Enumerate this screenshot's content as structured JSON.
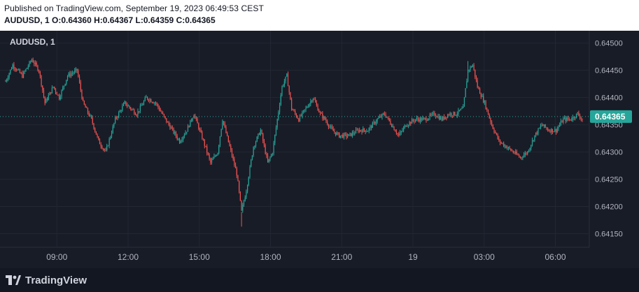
{
  "header": {
    "published": "Published on TradingView.com, September 19, 2023 06:49:53 CEST",
    "symbol": "AUDUSD, 1",
    "open_label": "O:",
    "open": "0.64360",
    "high_label": "H:",
    "high": "0.64367",
    "low_label": "L:",
    "low": "0.64359",
    "close_label": "C:",
    "close": "0.64365"
  },
  "chart_data": {
    "type": "candlestick",
    "symbol": "AUDUSD, 1",
    "interval": "1",
    "x_tick_labels": [
      "09:00",
      "12:00",
      "15:00",
      "18:00",
      "21:00",
      "19",
      "03:00",
      "06:00"
    ],
    "y_tick_labels": [
      "0.64500",
      "0.64450",
      "0.64400",
      "0.64350",
      "0.64300",
      "0.64250",
      "0.64200",
      "0.64150"
    ],
    "ylim": [
      0.64125,
      0.64515
    ],
    "last_price": 0.64365,
    "last_price_label": "0.64365",
    "grid": true,
    "colors": {
      "up": "#26a69a",
      "down": "#ef5350",
      "background": "#181c27",
      "grid": "#2a2e39",
      "text": "#b2b5be"
    },
    "price_path": [
      [
        0,
        0.6443
      ],
      [
        6,
        0.6446
      ],
      [
        14,
        0.6444
      ],
      [
        22,
        0.6447
      ],
      [
        28,
        0.6445
      ],
      [
        33,
        0.6439
      ],
      [
        40,
        0.6442
      ],
      [
        45,
        0.644
      ],
      [
        52,
        0.6444
      ],
      [
        60,
        0.6445
      ],
      [
        65,
        0.6439
      ],
      [
        72,
        0.6436
      ],
      [
        78,
        0.6432
      ],
      [
        84,
        0.643
      ],
      [
        92,
        0.6436
      ],
      [
        100,
        0.6439
      ],
      [
        110,
        0.6437
      ],
      [
        118,
        0.644
      ],
      [
        126,
        0.6439
      ],
      [
        134,
        0.6436
      ],
      [
        140,
        0.6434
      ],
      [
        146,
        0.6432
      ],
      [
        152,
        0.6434
      ],
      [
        158,
        0.6437
      ],
      [
        166,
        0.6432
      ],
      [
        172,
        0.6428
      ],
      [
        178,
        0.643
      ],
      [
        182,
        0.6436
      ],
      [
        188,
        0.6431
      ],
      [
        194,
        0.6426
      ],
      [
        198,
        0.6419
      ],
      [
        202,
        0.6423
      ],
      [
        208,
        0.6431
      ],
      [
        214,
        0.6434
      ],
      [
        220,
        0.6428
      ],
      [
        224,
        0.643
      ],
      [
        228,
        0.6436
      ],
      [
        232,
        0.6442
      ],
      [
        236,
        0.6444
      ],
      [
        240,
        0.6438
      ],
      [
        246,
        0.6436
      ],
      [
        252,
        0.6438
      ],
      [
        258,
        0.644
      ],
      [
        264,
        0.6437
      ],
      [
        268,
        0.6436
      ],
      [
        274,
        0.6434
      ],
      [
        280,
        0.6433
      ],
      [
        288,
        0.6433
      ],
      [
        296,
        0.6434
      ],
      [
        304,
        0.6434
      ],
      [
        312,
        0.6436
      ],
      [
        318,
        0.6437
      ],
      [
        324,
        0.6435
      ],
      [
        330,
        0.6433
      ],
      [
        336,
        0.6435
      ],
      [
        344,
        0.6436
      ],
      [
        352,
        0.6436
      ],
      [
        360,
        0.6437
      ],
      [
        366,
        0.6436
      ],
      [
        372,
        0.6437
      ],
      [
        378,
        0.6437
      ],
      [
        384,
        0.6438
      ],
      [
        388,
        0.6445
      ],
      [
        392,
        0.6446
      ],
      [
        396,
        0.6442
      ],
      [
        402,
        0.6439
      ],
      [
        408,
        0.6435
      ],
      [
        414,
        0.6432
      ],
      [
        420,
        0.6431
      ],
      [
        426,
        0.643
      ],
      [
        432,
        0.6429
      ],
      [
        438,
        0.643
      ],
      [
        444,
        0.6433
      ],
      [
        450,
        0.6435
      ],
      [
        456,
        0.6434
      ],
      [
        462,
        0.6434
      ],
      [
        468,
        0.6436
      ],
      [
        474,
        0.6436
      ],
      [
        480,
        0.6437
      ],
      [
        484,
        0.6436
      ]
    ],
    "spike_up": [
      {
        "x": 388,
        "value": 0.64467
      }
    ],
    "spike_down": [
      {
        "x": 198,
        "value": 0.64163
      }
    ]
  },
  "footer": {
    "brand": "TradingView"
  }
}
